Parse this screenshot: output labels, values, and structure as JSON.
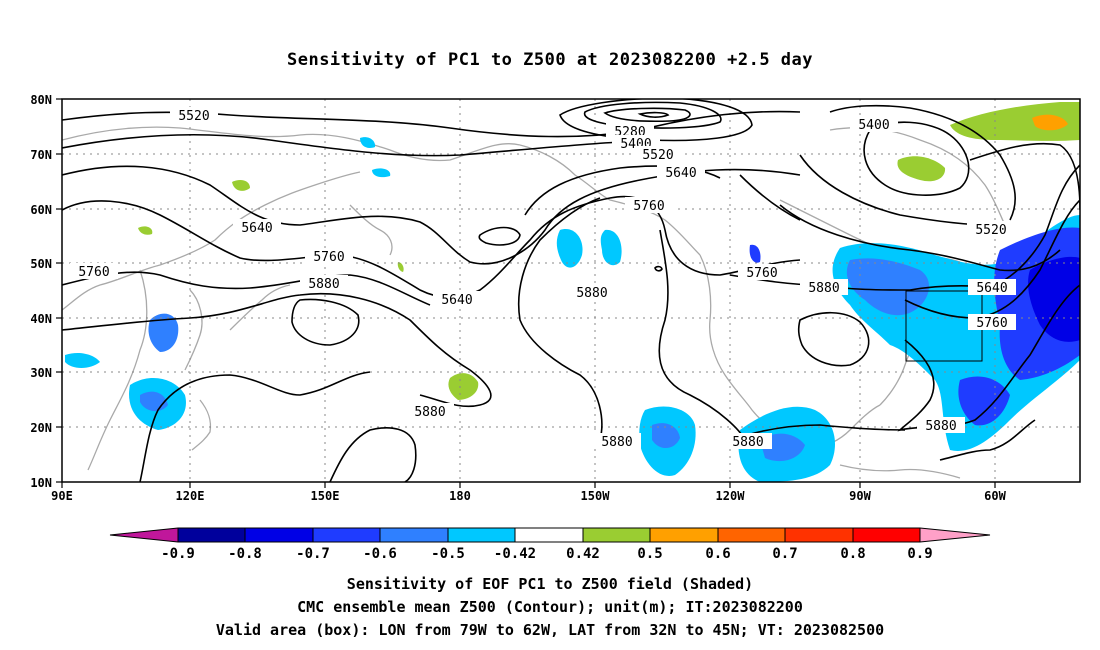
{
  "title": "Sensitivity of PC1 to Z500 at 2023082200 +2.5 day",
  "lat_labels": [
    "80N",
    "70N",
    "60N",
    "50N",
    "40N",
    "30N",
    "20N",
    "10N"
  ],
  "lon_labels": [
    "90E",
    "120E",
    "150E",
    "180",
    "150W",
    "120W",
    "90W",
    "60W"
  ],
  "contour_labels": {
    "c5520a": "5520",
    "c5280": "5280",
    "c5400a": "5400",
    "c5520b": "5520",
    "c5640a": "5640",
    "c5400b": "5400",
    "c5760a": "5760",
    "c5640b": "5640",
    "c5520c": "5520",
    "c5760b": "5760",
    "c5760c": "5760",
    "c5880a": "5880",
    "c5640c": "5640",
    "c5880b": "5880",
    "c5760d": "5760",
    "c5880c": "5880",
    "c5640d": "5640",
    "c5760e": "5760",
    "c5880d": "5880",
    "c5880e": "5880",
    "c5880f": "5880",
    "c5880g": "5880"
  },
  "colorbar": {
    "ticks": [
      "-0.9",
      "-0.8",
      "-0.7",
      "-0.6",
      "-0.5",
      "-0.42",
      "0.42",
      "0.5",
      "0.6",
      "0.7",
      "0.8",
      "0.9"
    ],
    "colors": [
      "#c0179b",
      "#00009c",
      "#0000e6",
      "#1f3cff",
      "#2f80ff",
      "#00c8ff",
      "#ffffff",
      "#9acd32",
      "#ffa000",
      "#ff6400",
      "#ff3200",
      "#ff0000",
      "#ffa0c8"
    ]
  },
  "captions": {
    "line1": "Sensitivity of EOF PC1 to Z500 field (Shaded)",
    "line2": "CMC ensemble mean Z500 (Contour); unit(m); IT:2023082200",
    "line3": "Valid area (box): LON from 79W to 62W, LAT from 32N to 45N; VT: 2023082500"
  }
}
